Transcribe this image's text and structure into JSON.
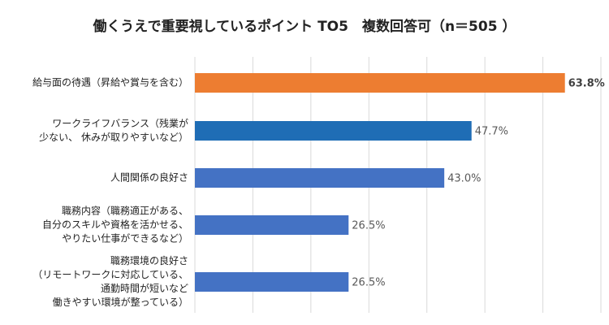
{
  "chart_data": {
    "type": "barh",
    "title": "働くうえで重要視しているポイント TO5　複数回答可（n＝505 ）",
    "categories": [
      [
        "給与面の待遇（昇給や賞与を含む）"
      ],
      [
        "ワークライフバランス（残業が",
        "少ない、 休みが取りやすいなど）"
      ],
      [
        "人間関係の良好さ"
      ],
      [
        "職務内容（職務適正がある、",
        "自分のスキルや資格を活かせる、",
        "やりたい仕事ができるなど）"
      ],
      [
        "職務環境の良好さ",
        "（リモートワークに対応している、",
        "通勤時間が短いなど",
        "働きやすい環境が整っている）"
      ]
    ],
    "values": [
      63.8,
      47.7,
      43.0,
      26.5,
      26.5
    ],
    "value_labels": [
      "63.8%",
      "47.7%",
      "43.0%",
      "26.5%",
      "26.5%"
    ],
    "colors": [
      "#ed7d31",
      "#1f6db5",
      "#4472c4",
      "#4472c4",
      "#4472c4"
    ],
    "xlim": [
      0,
      70
    ],
    "xticks": [
      0,
      10,
      20,
      30,
      40,
      50,
      60,
      70
    ],
    "grid": true
  }
}
